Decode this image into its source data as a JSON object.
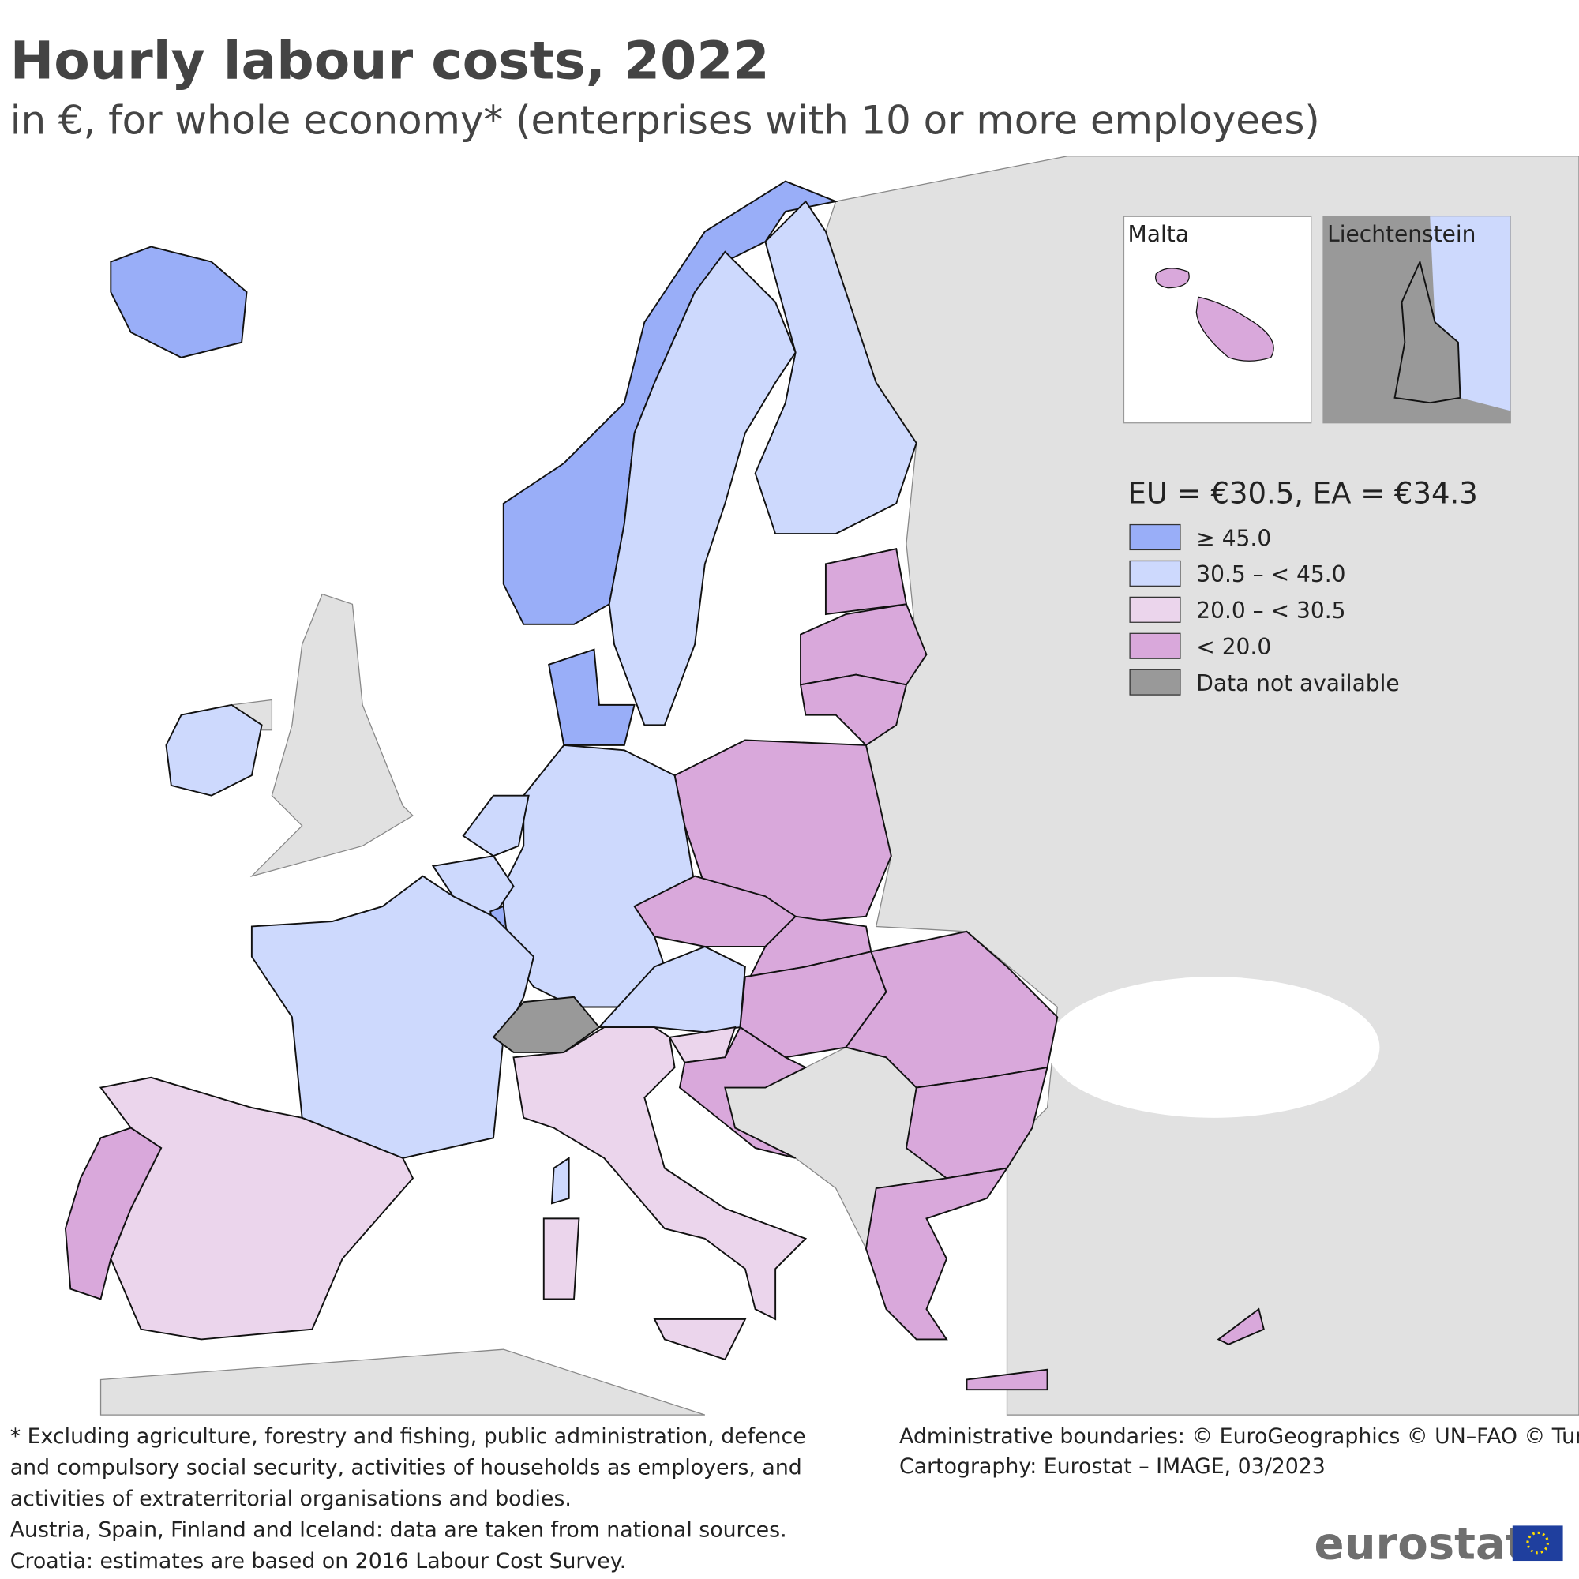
{
  "header": {
    "title": "Hourly labour costs, 2022",
    "subtitle": "in €, for whole economy* (enterprises with 10 or more employees)"
  },
  "insets": [
    {
      "label": "Malta"
    },
    {
      "label": "Liechtenstein"
    }
  ],
  "legend": {
    "title": "EU = €30.5, EA = €34.3",
    "items": [
      {
        "label": "≥ 45.0",
        "color": "#99aef8"
      },
      {
        "label": "30.5 – < 45.0",
        "color": "#cdd9fd"
      },
      {
        "label": "20.0 – < 30.5",
        "color": "#ebd5ec"
      },
      {
        "label": "< 20.0",
        "color": "#d9a8db"
      },
      {
        "label": "Data not available",
        "color": "#999999"
      }
    ]
  },
  "footnotes": [
    "* Excluding agriculture, forestry and fishing, public administration, defence",
    "and compulsory social security, activities of households as employers, and",
    "activities of extraterritorial organisations and bodies.",
    "Austria, Spain, Finland and Iceland: data are taken from national sources.",
    "Croatia: estimates are based on 2016 Labour Cost Survey."
  ],
  "credits": [
    "Administrative boundaries: © EuroGeographics © UN–FAO © Turkstat",
    "Cartography: Eurostat – IMAGE, 03/2023"
  ],
  "logo": "eurostat"
}
